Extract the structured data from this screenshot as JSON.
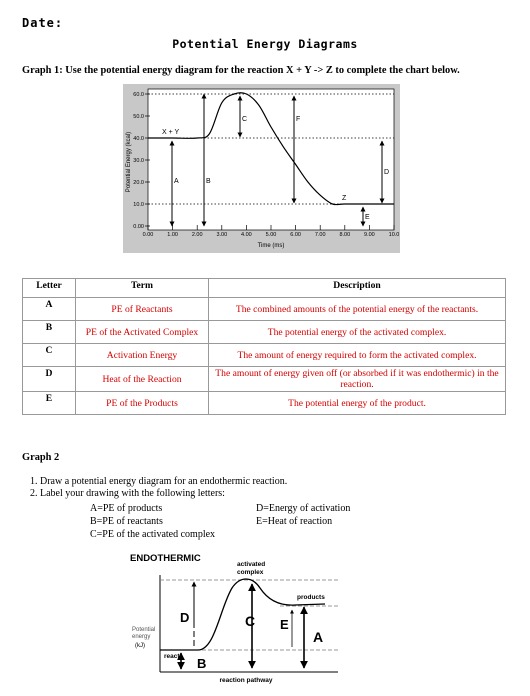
{
  "header": {
    "date_label": "Date:",
    "title": "Potential Energy Diagrams"
  },
  "graph1": {
    "instruction": "Graph 1:  Use the potential energy diagram for the reaction X + Y -> Z to complete the chart below.",
    "ylabel": "Potential Energy (kcal)",
    "xlabel": "Time (ms)",
    "yticks": [
      "0.00",
      "10.0",
      "20.0",
      "30.0",
      "40.0",
      "50.0",
      "60.0"
    ],
    "xticks": [
      "0.00",
      "1.00",
      "2.00",
      "3.00",
      "4.00",
      "5.00",
      "6.00",
      "7.00",
      "8.00",
      "9.00",
      "10.0"
    ],
    "labels": {
      "reactants": "X + Y",
      "product": "Z",
      "a": "A",
      "b": "B",
      "c": "C",
      "d": "D",
      "e": "E",
      "f": "F"
    }
  },
  "chart_data": {
    "type": "line",
    "xlabel": "Time (ms)",
    "ylabel": "Potential Energy (kcal)",
    "xlim": [
      0,
      10
    ],
    "ylim": [
      0,
      60
    ],
    "x": [
      0,
      1,
      2,
      2.5,
      3,
      3.5,
      4,
      4.5,
      5,
      5.5,
      6,
      6.5,
      7,
      7.5,
      8,
      9,
      10
    ],
    "y": [
      40,
      40,
      40,
      42,
      56,
      60,
      60,
      55,
      45,
      36,
      28,
      20,
      14,
      10,
      10,
      10,
      10
    ]
  },
  "table": {
    "headers": [
      "Letter",
      "Term",
      "Description"
    ],
    "rows": [
      {
        "letter": "A",
        "term": "PE of Reactants",
        "description": "The combined amounts of the potential energy of the reactants."
      },
      {
        "letter": "B",
        "term": "PE of the Activated Complex",
        "description": "The potential energy of the activated complex."
      },
      {
        "letter": "C",
        "term": "Activation Energy",
        "description": "The amount of energy required to form the activated complex."
      },
      {
        "letter": "D",
        "term": "Heat of the Reaction",
        "description": "The amount of energy given off (or absorbed if it was endothermic) in the reaction."
      },
      {
        "letter": "E",
        "term": "PE of the Products",
        "description": "The potential energy of the product."
      }
    ]
  },
  "graph2": {
    "title": "Graph 2",
    "steps": [
      "Draw a potential energy diagram for an endothermic reaction.",
      "Label your drawing with the following letters:"
    ],
    "legend": {
      "a": "A=PE of products",
      "b": "B=PE of reactants",
      "c": "C=PE of the activated complex",
      "d": "D=Energy of activation",
      "e": "E=Heat of reaction"
    },
    "diagram": {
      "title": "ENDOTHERMIC",
      "activated": "activated",
      "complex": "complex",
      "products": "products",
      "ylabel1": "Potential",
      "ylabel2": "energy",
      "ylabel3": "(kJ)",
      "reactants": "react",
      "xlabel": "reaction pathway",
      "letter_a": "A",
      "letter_b": "B",
      "letter_c": "C",
      "letter_d": "D",
      "letter_e": "E"
    }
  }
}
